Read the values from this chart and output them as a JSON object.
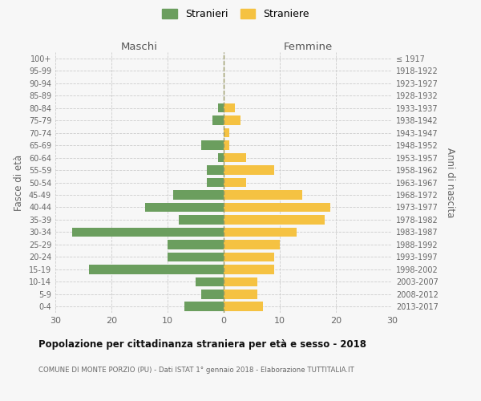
{
  "age_groups": [
    "0-4",
    "5-9",
    "10-14",
    "15-19",
    "20-24",
    "25-29",
    "30-34",
    "35-39",
    "40-44",
    "45-49",
    "50-54",
    "55-59",
    "60-64",
    "65-69",
    "70-74",
    "75-79",
    "80-84",
    "85-89",
    "90-94",
    "95-99",
    "100+"
  ],
  "birth_years": [
    "2013-2017",
    "2008-2012",
    "2003-2007",
    "1998-2002",
    "1993-1997",
    "1988-1992",
    "1983-1987",
    "1978-1982",
    "1973-1977",
    "1968-1972",
    "1963-1967",
    "1958-1962",
    "1953-1957",
    "1948-1952",
    "1943-1947",
    "1938-1942",
    "1933-1937",
    "1928-1932",
    "1923-1927",
    "1918-1922",
    "≤ 1917"
  ],
  "males": [
    7,
    4,
    5,
    24,
    10,
    10,
    27,
    8,
    14,
    9,
    3,
    3,
    1,
    4,
    0,
    2,
    1,
    0,
    0,
    0,
    0
  ],
  "females": [
    7,
    6,
    6,
    9,
    9,
    10,
    13,
    18,
    19,
    14,
    4,
    9,
    4,
    1,
    1,
    3,
    2,
    0,
    0,
    0,
    0
  ],
  "male_color": "#6b9e5e",
  "female_color": "#f5c242",
  "background_color": "#f7f7f7",
  "grid_color": "#cccccc",
  "center_line_color": "#999966",
  "xlim": 30,
  "title": "Popolazione per cittadinanza straniera per età e sesso - 2018",
  "subtitle": "COMUNE DI MONTE PORZIO (PU) - Dati ISTAT 1° gennaio 2018 - Elaborazione TUTTITALIA.IT",
  "xlabel_left": "Maschi",
  "xlabel_right": "Femmine",
  "ylabel_left": "Fasce di età",
  "ylabel_right": "Anni di nascita",
  "legend_male": "Stranieri",
  "legend_female": "Straniere"
}
